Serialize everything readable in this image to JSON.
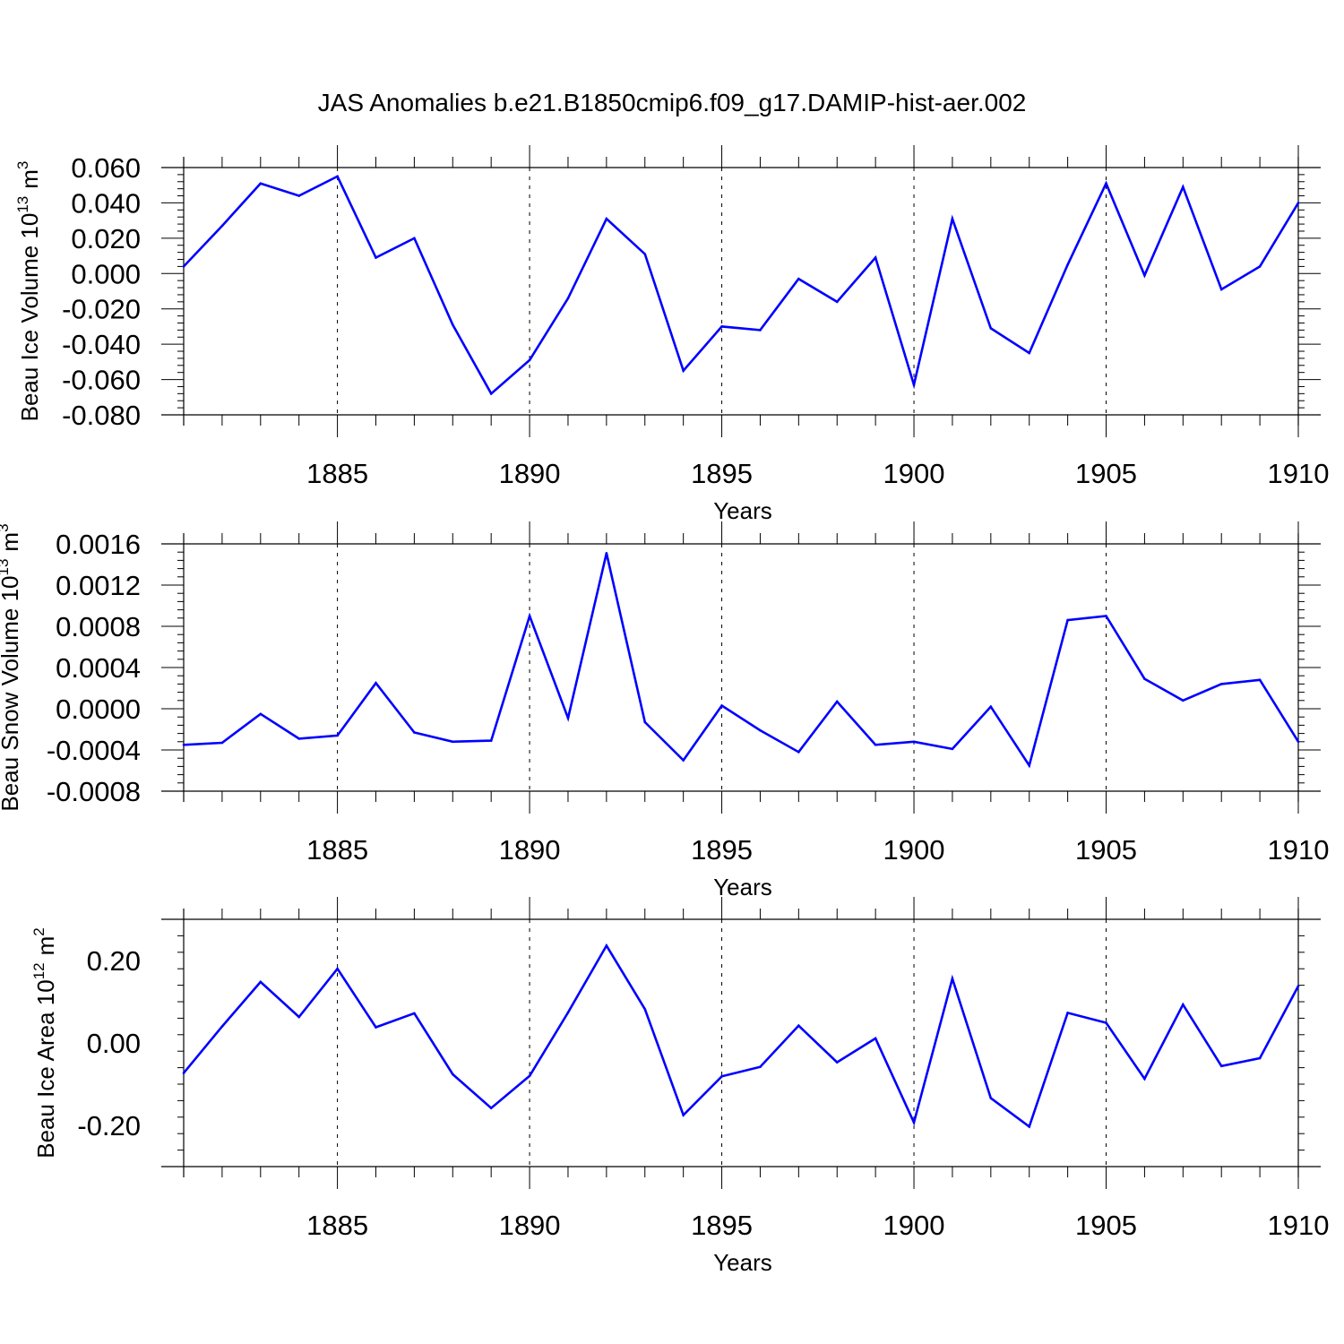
{
  "title": "JAS Anomalies b.e21.B1850cmip6.f09_g17.DAMIP-hist-aer.002",
  "line_color": "#0000ff",
  "chart_data": [
    {
      "type": "line",
      "ylabel_main": "Beau Ice Volume 10",
      "ylabel_exp": "13",
      "ylabel_unit": "m",
      "ylabel_unit_exp": "3",
      "xlabel": "Years",
      "xlim": [
        1881,
        1910
      ],
      "ylim": [
        -0.08,
        0.06
      ],
      "yticks": [
        -0.08,
        -0.06,
        -0.04,
        -0.02,
        0.0,
        0.02,
        0.04,
        0.06
      ],
      "ytick_labels": [
        "-0.080",
        "-0.060",
        "-0.040",
        "-0.020",
        "0.000",
        "0.020",
        "0.040",
        "0.060"
      ],
      "xticks": [
        1885,
        1890,
        1895,
        1900,
        1905,
        1910
      ],
      "xtick_labels": [
        "1885",
        "1890",
        "1895",
        "1900",
        "1905",
        "1910"
      ],
      "grid": "dashed vertical at major x ticks",
      "x": [
        1881,
        1882,
        1883,
        1884,
        1885,
        1886,
        1887,
        1888,
        1889,
        1890,
        1891,
        1892,
        1893,
        1894,
        1895,
        1896,
        1897,
        1898,
        1899,
        1900,
        1901,
        1902,
        1903,
        1904,
        1905,
        1906,
        1907,
        1908,
        1909,
        1910
      ],
      "y": [
        0.004,
        0.027,
        0.051,
        0.044,
        0.055,
        0.009,
        0.02,
        -0.029,
        -0.068,
        -0.049,
        -0.014,
        0.031,
        0.011,
        -0.055,
        -0.03,
        -0.032,
        -0.003,
        -0.016,
        0.009,
        -0.063,
        0.031,
        -0.031,
        -0.045,
        0.005,
        0.051,
        -0.001,
        0.049,
        -0.009,
        0.004,
        0.04
      ]
    },
    {
      "type": "line",
      "ylabel_main": "Beau Snow Volume 10",
      "ylabel_exp": "13",
      "ylabel_unit": "m",
      "ylabel_unit_exp": "3",
      "xlabel": "Years",
      "xlim": [
        1881,
        1910
      ],
      "ylim": [
        -0.0008,
        0.0016
      ],
      "yticks": [
        -0.0008,
        -0.0004,
        0.0,
        0.0004,
        0.0008,
        0.0012,
        0.0016
      ],
      "ytick_labels": [
        "-0.0008",
        "-0.0004",
        "0.0000",
        "0.0004",
        "0.0008",
        "0.0012",
        "0.0016"
      ],
      "xticks": [
        1885,
        1890,
        1895,
        1900,
        1905,
        1910
      ],
      "xtick_labels": [
        "1885",
        "1890",
        "1895",
        "1900",
        "1905",
        "1910"
      ],
      "grid": "dashed vertical at major x ticks",
      "x": [
        1881,
        1882,
        1883,
        1884,
        1885,
        1886,
        1887,
        1888,
        1889,
        1890,
        1891,
        1892,
        1893,
        1894,
        1895,
        1896,
        1897,
        1898,
        1899,
        1900,
        1901,
        1902,
        1903,
        1904,
        1905,
        1906,
        1907,
        1908,
        1909,
        1910
      ],
      "y": [
        -0.00035,
        -0.00033,
        -5e-05,
        -0.00029,
        -0.00026,
        0.00025,
        -0.00023,
        -0.00032,
        -0.00031,
        0.0009,
        -9e-05,
        0.00151,
        -0.00013,
        -0.0005,
        3e-05,
        -0.00021,
        -0.00042,
        7e-05,
        -0.00035,
        -0.00032,
        -0.00039,
        2e-05,
        -0.00055,
        0.00086,
        0.0009,
        0.00029,
        8e-05,
        0.00024,
        0.00028,
        -0.00032
      ]
    },
    {
      "type": "line",
      "ylabel_main": "Beau Ice Area 10",
      "ylabel_exp": "12",
      "ylabel_unit": "m",
      "ylabel_unit_exp": "2",
      "xlabel": "Years",
      "xlim": [
        1881,
        1910
      ],
      "ylim": [
        -0.3,
        0.3
      ],
      "yticks": [
        -0.2,
        0.0,
        0.2
      ],
      "ytick_labels": [
        "-0.20",
        "0.00",
        "0.20"
      ],
      "xticks": [
        1885,
        1890,
        1895,
        1900,
        1905,
        1910
      ],
      "xtick_labels": [
        "1885",
        "1890",
        "1895",
        "1900",
        "1905",
        "1910"
      ],
      "grid": "dashed vertical at major x ticks",
      "x": [
        1881,
        1882,
        1883,
        1884,
        1885,
        1886,
        1887,
        1888,
        1889,
        1890,
        1891,
        1892,
        1893,
        1894,
        1895,
        1896,
        1897,
        1898,
        1899,
        1900,
        1901,
        1902,
        1903,
        1904,
        1905,
        1906,
        1907,
        1908,
        1909,
        1910
      ],
      "y": [
        -0.073,
        0.04,
        0.148,
        0.063,
        0.18,
        0.038,
        0.072,
        -0.076,
        -0.158,
        -0.08,
        0.074,
        0.236,
        0.082,
        -0.175,
        -0.081,
        -0.058,
        0.042,
        -0.047,
        0.011,
        -0.193,
        0.156,
        -0.134,
        -0.203,
        0.073,
        0.049,
        -0.087,
        0.093,
        -0.056,
        -0.037,
        0.138
      ]
    }
  ]
}
